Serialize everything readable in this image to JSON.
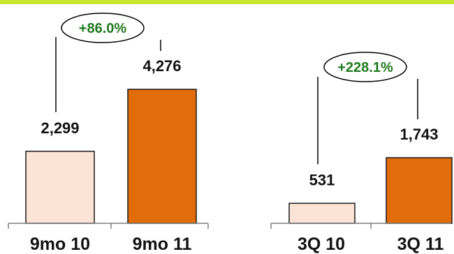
{
  "colors": {
    "top_bar": "#c8e630",
    "prior_fill": "#fbe4d5",
    "current_fill": "#e36c0a",
    "bar_stroke": "#1a1a1a",
    "growth_text": "#1e7a1e",
    "label_text": "#111111"
  },
  "chart_data": [
    {
      "type": "bar",
      "categories": [
        "9mo 10",
        "9mo 11"
      ],
      "values": [
        2299,
        4276
      ],
      "value_labels": [
        "2,299",
        "4,276"
      ],
      "growth_label": "+86.0%",
      "title": "",
      "xlabel": "",
      "ylabel": ""
    },
    {
      "type": "bar",
      "categories": [
        "3Q 10",
        "3Q 11"
      ],
      "values": [
        531,
        1743
      ],
      "value_labels": [
        "531",
        "1,743"
      ],
      "growth_label": "+228.1%",
      "title": "",
      "xlabel": "",
      "ylabel": ""
    }
  ]
}
